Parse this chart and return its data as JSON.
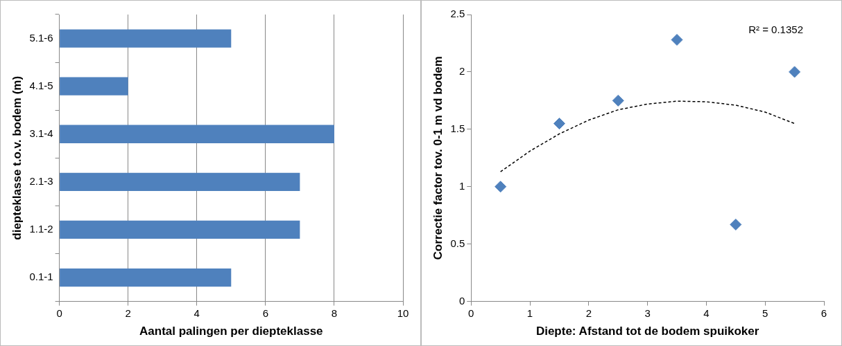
{
  "chart_data": [
    {
      "type": "bar",
      "orientation": "horizontal",
      "categories": [
        "5.1-6",
        "4.1-5",
        "3.1-4",
        "2.1-3",
        "1.1-2",
        "0.1-1"
      ],
      "values": [
        5,
        2,
        8,
        7,
        7,
        5
      ],
      "color": "#4f81bd",
      "xlabel": "Aantal palingen per diepteklasse",
      "ylabel": "diepteklasse t.o.v. bodem (m)",
      "xlim": [
        0,
        10
      ],
      "xticks": [
        0,
        2,
        4,
        6,
        8,
        10
      ],
      "grid": "x",
      "legend": false
    },
    {
      "type": "scatter",
      "xlabel": "Diepte: Afstand tot de bodem spuikoker",
      "ylabel": "Correctie factor tov. 0-1 m vd bodem",
      "xlim": [
        0,
        6
      ],
      "xticks": [
        0,
        1,
        2,
        3,
        4,
        5,
        6
      ],
      "ylim": [
        0,
        2.5
      ],
      "yticks": [
        0,
        0.5,
        1,
        1.5,
        2,
        2.5
      ],
      "grid": false,
      "legend": false,
      "annotations": [
        "R² = 0.1352"
      ],
      "series": [
        {
          "type": "scatter",
          "color": "#4f81bd",
          "marker": "diamond",
          "x": [
            0.5,
            1.5,
            2.5,
            3.5,
            4.5,
            5.5
          ],
          "values": [
            1,
            1.55,
            1.75,
            2.28,
            0.67,
            2
          ]
        },
        {
          "type": "line",
          "color": "#000000",
          "marker": "none",
          "line_style": "dashed",
          "x": [
            0.5,
            1,
            1.5,
            2,
            2.5,
            3,
            3.5,
            4,
            4.5,
            5,
            5.5
          ],
          "values": [
            1.13,
            1.31,
            1.46,
            1.58,
            1.67,
            1.72,
            1.745,
            1.74,
            1.71,
            1.65,
            1.55
          ]
        }
      ]
    }
  ]
}
